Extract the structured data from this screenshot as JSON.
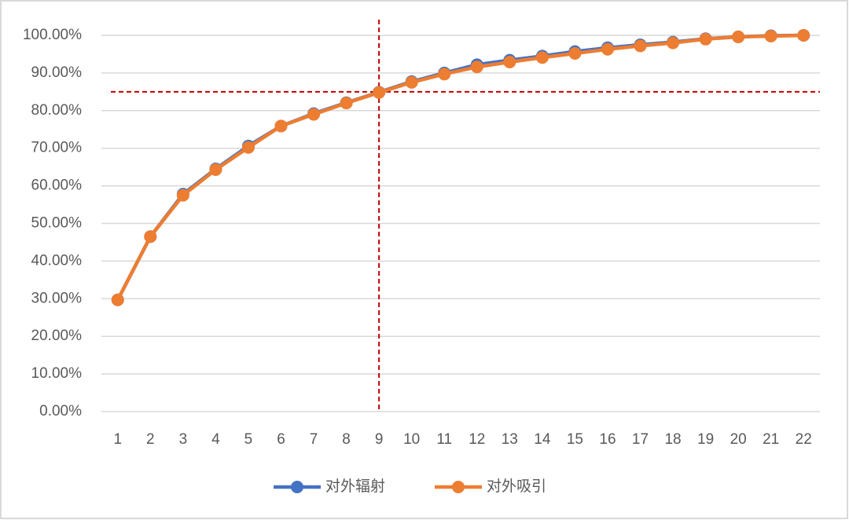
{
  "chart_data": {
    "type": "line",
    "categories": [
      "1",
      "2",
      "3",
      "4",
      "5",
      "6",
      "7",
      "8",
      "9",
      "10",
      "11",
      "12",
      "13",
      "14",
      "15",
      "16",
      "17",
      "18",
      "19",
      "20",
      "21",
      "22"
    ],
    "series": [
      {
        "name": "对外辐射",
        "color": "#4472c4",
        "values": [
          29.7,
          46.5,
          57.8,
          64.5,
          70.6,
          75.9,
          79.2,
          82.1,
          84.9,
          87.7,
          90.0,
          92.2,
          93.4,
          94.5,
          95.7,
          96.7,
          97.5,
          98.2,
          99.1,
          99.6,
          99.9,
          100
        ]
      },
      {
        "name": "对外吸引",
        "color": "#ed7d31",
        "values": [
          29.7,
          46.5,
          57.5,
          64.3,
          70.2,
          75.9,
          79.0,
          82.0,
          84.8,
          87.5,
          89.7,
          91.6,
          92.9,
          94.1,
          95.2,
          96.3,
          97.2,
          98.0,
          99.0,
          99.6,
          99.8,
          100
        ]
      }
    ],
    "ylim": [
      0,
      100
    ],
    "yticks": [
      {
        "value": 0,
        "label": "0.00%"
      },
      {
        "value": 10,
        "label": "10.00%"
      },
      {
        "value": 20,
        "label": "20.00%"
      },
      {
        "value": 30,
        "label": "30.00%"
      },
      {
        "value": 40,
        "label": "40.00%"
      },
      {
        "value": 50,
        "label": "50.00%"
      },
      {
        "value": 60,
        "label": "60.00%"
      },
      {
        "value": 70,
        "label": "70.00%"
      },
      {
        "value": 80,
        "label": "80.00%"
      },
      {
        "value": 90,
        "label": "90.00%"
      },
      {
        "value": 100,
        "label": "100.00%"
      }
    ],
    "grid": true,
    "legend": "bottom",
    "ref_lines": [
      {
        "axis": "y",
        "value": 85,
        "color": "#c00000"
      },
      {
        "axis": "x",
        "value": "9",
        "color": "#c00000"
      }
    ]
  }
}
